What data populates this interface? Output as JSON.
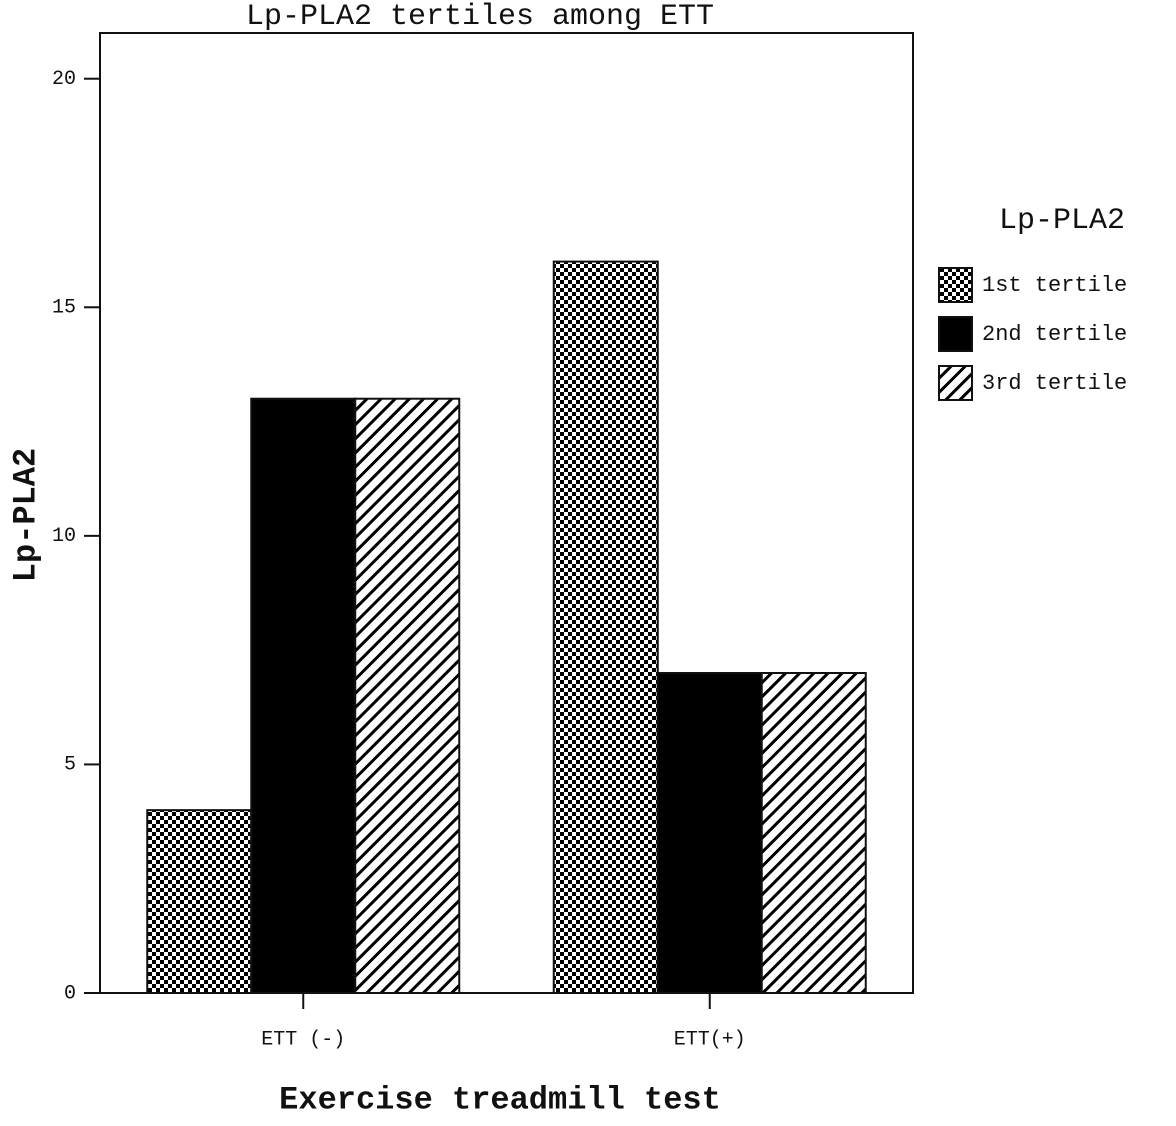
{
  "chart_data": {
    "type": "bar",
    "title": "Lp-PLA2 tertiles among ETT",
    "x_label": "Exercise treadmill test",
    "y_label": "Lp-PLA2",
    "categories": [
      "ETT (-)",
      "ETT(+)"
    ],
    "series": [
      {
        "name": "1st tertile",
        "color": "#000000",
        "pattern": "checker",
        "values": [
          4,
          16
        ]
      },
      {
        "name": "2nd tertile",
        "color": "#000000",
        "pattern": "solid",
        "values": [
          13,
          7
        ]
      },
      {
        "name": "3rd tertile",
        "color": "#000000",
        "pattern": "hatch",
        "values": [
          13,
          7
        ]
      }
    ],
    "legend_title": "Lp-PLA2",
    "legend_position": "right",
    "ylim": [
      0,
      21
    ],
    "yticks": [
      0,
      5,
      10,
      15,
      20
    ],
    "grid": false
  }
}
